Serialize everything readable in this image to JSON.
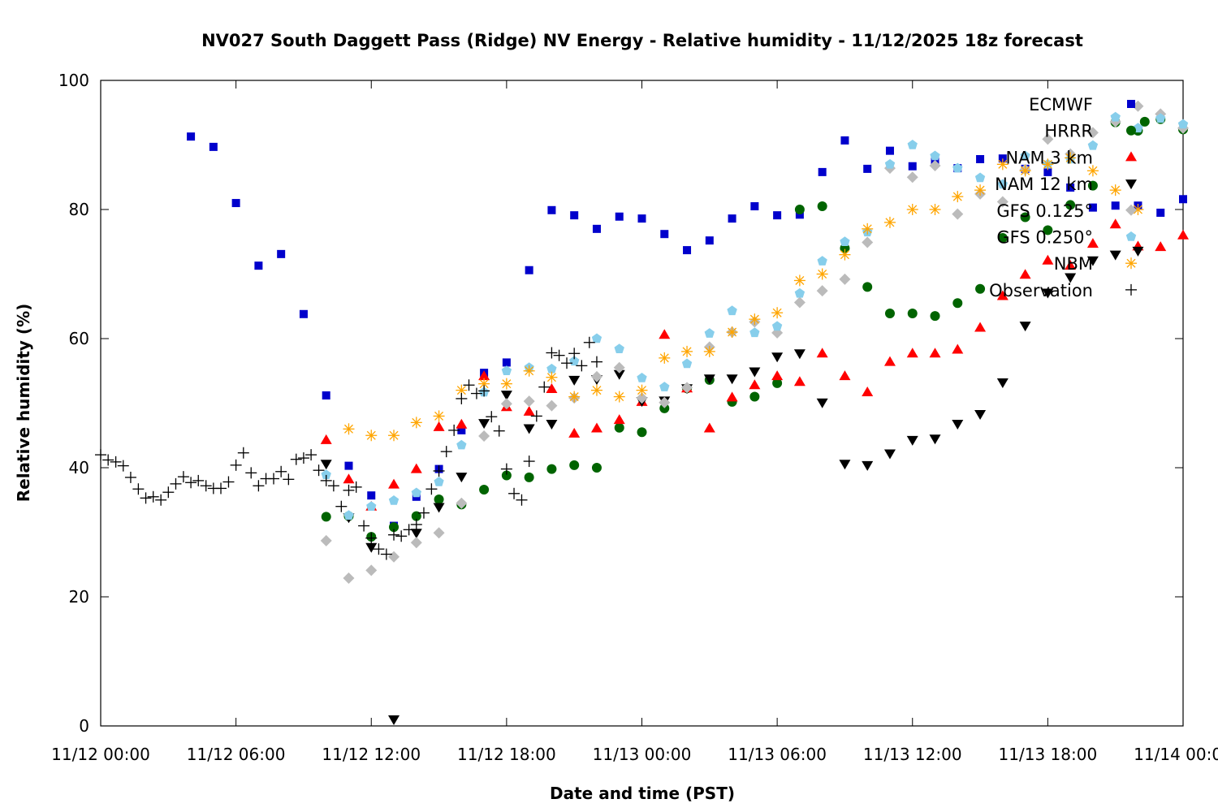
{
  "chart_data": {
    "type": "scatter",
    "title": "NV027 South Daggett Pass (Ridge) NV Energy - Relative humidity - 11/12/2025 18z forecast",
    "xlabel": "Date and time (PST)",
    "ylabel": "Relative humidity (%)",
    "x_units": "hours since 11/12 00:00 PST",
    "xlim": [
      0,
      48
    ],
    "ylim": [
      0,
      100
    ],
    "grid": false,
    "legend_position": "top-right",
    "x_ticks": [
      {
        "value": 0,
        "label": "11/12 00:00"
      },
      {
        "value": 6,
        "label": "11/12 06:00"
      },
      {
        "value": 12,
        "label": "11/12 12:00"
      },
      {
        "value": 18,
        "label": "11/12 18:00"
      },
      {
        "value": 24,
        "label": "11/13 00:00"
      },
      {
        "value": 30,
        "label": "11/13 06:00"
      },
      {
        "value": 36,
        "label": "11/13 12:00"
      },
      {
        "value": 42,
        "label": "11/13 18:00"
      },
      {
        "value": 48,
        "label": "11/14 00:00"
      }
    ],
    "y_ticks": [
      {
        "value": 0,
        "label": "0"
      },
      {
        "value": 20,
        "label": "20"
      },
      {
        "value": 40,
        "label": "40"
      },
      {
        "value": 60,
        "label": "60"
      },
      {
        "value": 80,
        "label": "80"
      },
      {
        "value": 100,
        "label": "100"
      }
    ],
    "series": [
      {
        "name": "ECMWF",
        "color": "#0000cc",
        "marker": "square",
        "x": [
          4,
          5,
          6,
          7,
          8,
          9,
          10,
          11,
          12,
          13,
          14,
          15,
          16,
          17,
          18,
          19,
          20,
          21,
          22,
          23,
          24,
          25,
          26,
          27,
          28,
          29,
          30,
          31,
          32,
          33,
          34,
          35,
          36,
          37,
          38,
          39,
          40,
          41,
          42,
          43,
          44,
          45,
          46,
          47,
          48
        ],
        "y": [
          91.3,
          89.7,
          81,
          71.3,
          73.1,
          63.8,
          51.2,
          40.3,
          35.7,
          31,
          35.5,
          39.8,
          45.8,
          54.7,
          56.3,
          70.6,
          79.9,
          79.1,
          77,
          78.9,
          78.6,
          76.2,
          73.7,
          75.2,
          78.6,
          80.5,
          79.1,
          79.2,
          85.8,
          90.7,
          86.3,
          89.1,
          86.7,
          87.5,
          86.4,
          87.8,
          87.9,
          86.3,
          85.8,
          83.4,
          80.3,
          80.6,
          80.6,
          79.5,
          81.6
        ]
      },
      {
        "name": "HRRR",
        "color": "#006400",
        "marker": "circle",
        "x": [
          10,
          11,
          12,
          13,
          14,
          15,
          16,
          17,
          18,
          19,
          20,
          21,
          22,
          23,
          24,
          25,
          26,
          27,
          28,
          29,
          30,
          31,
          32,
          33,
          34,
          35,
          36,
          37,
          38,
          39,
          40,
          41,
          42,
          43,
          44,
          45,
          46,
          46.3,
          47,
          48
        ],
        "y": [
          32.4,
          32.5,
          29.3,
          30.8,
          32.5,
          35.1,
          34.3,
          36.6,
          38.8,
          38.5,
          39.8,
          40.4,
          40,
          46.2,
          45.5,
          49.2,
          52.3,
          53.6,
          50.2,
          51,
          53.1,
          80,
          80.5,
          74,
          68,
          63.9,
          63.9,
          63.5,
          65.5,
          67.7,
          75.6,
          78.8,
          76.8,
          80.7,
          83.7,
          93.5,
          92.2,
          93.6,
          94,
          92.4
        ]
      },
      {
        "name": "NAM 3 km",
        "color": "#ff0000",
        "marker": "triangle-up",
        "x": [
          10,
          11,
          12,
          13,
          14,
          15,
          16,
          17,
          18,
          19,
          20,
          21,
          22,
          23,
          24,
          25,
          26,
          27,
          28,
          29,
          30,
          31,
          32,
          33,
          34,
          35,
          36,
          37,
          38,
          39,
          40,
          41,
          42,
          43,
          44,
          45,
          46,
          47,
          48
        ],
        "y": [
          44.3,
          38.2,
          34,
          37.4,
          39.8,
          46.3,
          46.7,
          54.2,
          49.4,
          48.7,
          52.2,
          45.3,
          46.1,
          47.4,
          50.2,
          60.6,
          52.3,
          46.1,
          50.9,
          52.8,
          54.2,
          53.3,
          57.7,
          54.2,
          51.7,
          56.4,
          57.7,
          57.7,
          58.3,
          61.7,
          66.6,
          69.9,
          72.1,
          71.3,
          74.7,
          77.7,
          74.3,
          74.2,
          76
        ]
      },
      {
        "name": "NAM 12 km",
        "color": "#000000",
        "marker": "triangle-down",
        "x": [
          10,
          11,
          12,
          13,
          14,
          15,
          16,
          17,
          18,
          19,
          20,
          21,
          22,
          23,
          24,
          25,
          26,
          27,
          28,
          29,
          30,
          31,
          32,
          33,
          34,
          35,
          36,
          37,
          38,
          39,
          40,
          41,
          42,
          43,
          44,
          45,
          46
        ],
        "y": [
          40.6,
          32.3,
          27.7,
          1,
          29.9,
          33.9,
          38.6,
          46.9,
          51.3,
          46.1,
          46.8,
          53.6,
          53.7,
          54.5,
          50.3,
          50.4,
          52.3,
          53.8,
          53.8,
          54.9,
          57.2,
          57.7,
          50.1,
          40.6,
          40.4,
          42.2,
          44.3,
          44.5,
          46.8,
          48.3,
          53.2,
          62,
          67.1,
          69.5,
          72.1,
          73,
          73.6
        ]
      },
      {
        "name": "GFS 0.125°",
        "color": "#bbbbbb",
        "marker": "diamond",
        "x": [
          10,
          11,
          12,
          13,
          14,
          15,
          16,
          17,
          18,
          19,
          20,
          21,
          22,
          23,
          24,
          25,
          26,
          27,
          28,
          29,
          30,
          31,
          32,
          33,
          34,
          35,
          36,
          37,
          38,
          39,
          40,
          41,
          42,
          43,
          44,
          45,
          46,
          47,
          48
        ],
        "y": [
          28.7,
          22.9,
          24.1,
          26.2,
          28.4,
          29.9,
          34.5,
          44.9,
          49.9,
          50.3,
          49.6,
          50.8,
          54.1,
          55.5,
          50.8,
          50.1,
          52.4,
          58.7,
          61,
          62.6,
          60.9,
          65.6,
          67.4,
          69.2,
          74.9,
          86.4,
          85,
          86.8,
          79.3,
          82.4,
          81.2,
          86.2,
          90.9,
          88.6,
          91.9,
          93.6,
          96,
          94.8,
          92.6
        ]
      },
      {
        "name": "GFS 0.250°",
        "color": "#87ceeb",
        "marker": "pentagon",
        "x": [
          10,
          11,
          12,
          13,
          14,
          15,
          16,
          17,
          18,
          19,
          20,
          21,
          22,
          23,
          24,
          25,
          26,
          27,
          28,
          29,
          30,
          31,
          32,
          33,
          34,
          35,
          36,
          37,
          38,
          39,
          40,
          41,
          42,
          43,
          44,
          45,
          46,
          47,
          48
        ],
        "y": [
          38.9,
          32.6,
          34,
          34.9,
          36.1,
          37.8,
          43.5,
          51.7,
          55,
          55.5,
          55.3,
          56.5,
          60,
          58.4,
          53.9,
          52.5,
          56.1,
          60.8,
          64.3,
          60.9,
          61.9,
          67,
          72,
          75,
          76.5,
          87,
          90,
          88.3,
          86.4,
          84.9,
          83.9,
          88.3,
          87,
          87.8,
          89.9,
          94.3,
          92.6,
          94.1,
          93.2
        ]
      },
      {
        "name": "NBM",
        "color": "#ffa500",
        "marker": "star",
        "x": [
          11,
          12,
          13,
          14,
          15,
          16,
          17,
          18,
          19,
          20,
          21,
          22,
          23,
          24,
          25,
          26,
          27,
          28,
          29,
          30,
          31,
          32,
          33,
          34,
          35,
          36,
          37,
          38,
          39,
          40,
          41,
          42,
          43,
          44,
          45,
          46
        ],
        "y": [
          46,
          45,
          45,
          47,
          48,
          52,
          53,
          53,
          55,
          54,
          51,
          52,
          51,
          52,
          57,
          58,
          58,
          61,
          63,
          64,
          69,
          70,
          73,
          77,
          78,
          80,
          80,
          82,
          83,
          87,
          86,
          87,
          88,
          86,
          83,
          80
        ]
      },
      {
        "name": "Observation",
        "color": "#000000",
        "marker": "plus",
        "x": [
          0,
          0.33,
          0.67,
          1,
          1.33,
          1.67,
          2,
          2.33,
          2.67,
          3,
          3.33,
          3.67,
          4,
          4.33,
          4.67,
          5,
          5.33,
          5.67,
          6,
          6.33,
          6.67,
          7,
          7.33,
          7.67,
          8,
          8.33,
          8.67,
          9,
          9.33,
          9.67,
          10,
          10.33,
          10.67,
          11,
          11.33,
          11.67,
          12,
          12.33,
          12.67,
          13,
          13.33,
          13.67,
          14,
          14.33,
          14.67,
          15,
          15.33,
          15.67,
          16,
          16.33,
          16.67,
          17,
          17.33,
          17.67,
          18,
          18.33,
          18.67,
          19,
          19.33,
          19.67,
          20,
          20.33,
          20.67,
          21,
          21.33,
          21.67,
          22
        ],
        "y": [
          42,
          41.2,
          40.9,
          40.3,
          38.5,
          36.7,
          35.3,
          35.5,
          35,
          36.2,
          37.5,
          38.6,
          37.7,
          38,
          37.2,
          36.8,
          36.8,
          37.8,
          40.4,
          42.3,
          39.2,
          37.2,
          38.3,
          38.3,
          39.4,
          38.2,
          41.3,
          41.5,
          42,
          39.6,
          38,
          37.2,
          34,
          36.5,
          37,
          31,
          29.1,
          27.4,
          26.6,
          29.6,
          29.4,
          30.4,
          31.2,
          33,
          36.7,
          39.5,
          42.5,
          45.8,
          50.7,
          52.8,
          51.5,
          51.9,
          47.9,
          45.7,
          39.8,
          36,
          35,
          41,
          48,
          52.5,
          57.8,
          57.4,
          56.2,
          57.7,
          55.8,
          59.4,
          56.4
        ]
      }
    ]
  }
}
